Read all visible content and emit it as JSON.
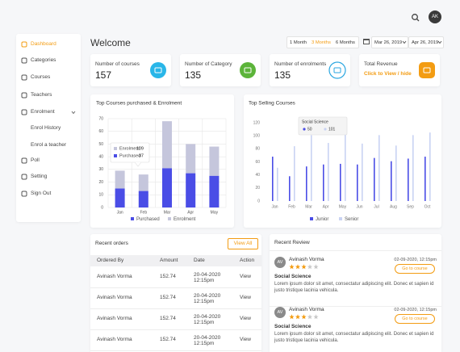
{
  "header": {
    "avatar": "AK"
  },
  "sidebar": {
    "items": [
      "Dashboard",
      "Categories",
      "Courses",
      "Teachers",
      "Enrolment",
      "Enrol History",
      "Enrol a teacher",
      "Poll",
      "Setting",
      "Sign Out"
    ]
  },
  "welcome": "Welcome",
  "range_tabs": [
    "1 Month",
    "3 Months",
    "6 Months"
  ],
  "date_from": "Mar 26, 2019",
  "date_to": "Apr 26, 2019",
  "stats": [
    {
      "label": "Number of courses",
      "value": 157
    },
    {
      "label": "Number of Category",
      "value": 135
    },
    {
      "label": "Number of enrolments",
      "value": 135
    },
    {
      "label": "Total Revenue",
      "link": "Click to View / hide"
    }
  ],
  "courses_chart": {
    "type": "bar",
    "stacked": true,
    "title": "Top Courses purchased & Enrolment",
    "categories": [
      "Jan",
      "Feb",
      "Mar",
      "Apr",
      "May"
    ],
    "series": [
      {
        "name": "Purchased",
        "color": "#4a4de6",
        "values": [
          15,
          13,
          31,
          27,
          25
        ]
      },
      {
        "name": "Enrolment",
        "color": "#c5c6dc",
        "values": [
          14,
          13,
          37,
          23,
          23
        ]
      }
    ],
    "ylim": [
      0,
      70
    ],
    "yticks": [
      0,
      10,
      20,
      30,
      40,
      50,
      60,
      70
    ],
    "grid": true,
    "tooltip_values": [
      109,
      37
    ]
  },
  "selling_chart": {
    "type": "bar",
    "title": "Top Selling Courses",
    "categories": [
      "Jan",
      "Feb",
      "Mar",
      "Apr",
      "May",
      "Jun",
      "Jul",
      "Aug",
      "Sep",
      "Oct"
    ],
    "series": [
      {
        "name": "Junior",
        "color": "#4a4de6",
        "values": [
          68,
          38,
          53,
          56,
          57,
          56,
          66,
          61,
          65,
          68
        ]
      },
      {
        "name": "Senior",
        "color": "#c9d3f3",
        "values": [
          51,
          84,
          101,
          89,
          105,
          88,
          101,
          85,
          101,
          105
        ]
      }
    ],
    "ylim": [
      0,
      120
    ],
    "yticks": [
      0,
      20,
      40,
      60,
      80,
      100,
      120
    ],
    "tooltip": {
      "title": "Social Science",
      "values": [
        50,
        101
      ]
    }
  },
  "orders": {
    "title": "Recent orders",
    "button": "View All",
    "columns": [
      "Ordered By",
      "Amount",
      "Date",
      "Action"
    ],
    "rows": [
      [
        "Avinash Vorma",
        152.74,
        "20-04-2020 12:15pm",
        "View"
      ],
      [
        "Avinash Vorma",
        152.74,
        "20-04-2020 12:15pm",
        "View"
      ],
      [
        "Avinash Vorma",
        152.74,
        "20-04-2020 12:15pm",
        "View"
      ],
      [
        "Avinash Vorma",
        152.74,
        "20-04-2020 12:15pm",
        "View"
      ]
    ]
  },
  "reviews": {
    "title": "Recent Review",
    "items": [
      {
        "avatar": "AV",
        "name": "Avinash Vorma",
        "rating": 3,
        "date": "02-09-2020, 12:15pm",
        "button": "Go to course",
        "course": "Social Science",
        "text": "Lorem ipsum dolor sit amet, consectatur adipiscing elit. Donec et sapien id justo tristique lacinia vehicula."
      },
      {
        "avatar": "AV",
        "name": "Avinash Vorma",
        "rating": 3,
        "date": "02-09-2020, 12:15pm",
        "button": "Go to course",
        "course": "Social Science",
        "text": "Lorem ipsum dolor sit amet, consectatur adipiscing elit. Donec et sapien id justo tristique lacinia vehicula."
      }
    ]
  }
}
